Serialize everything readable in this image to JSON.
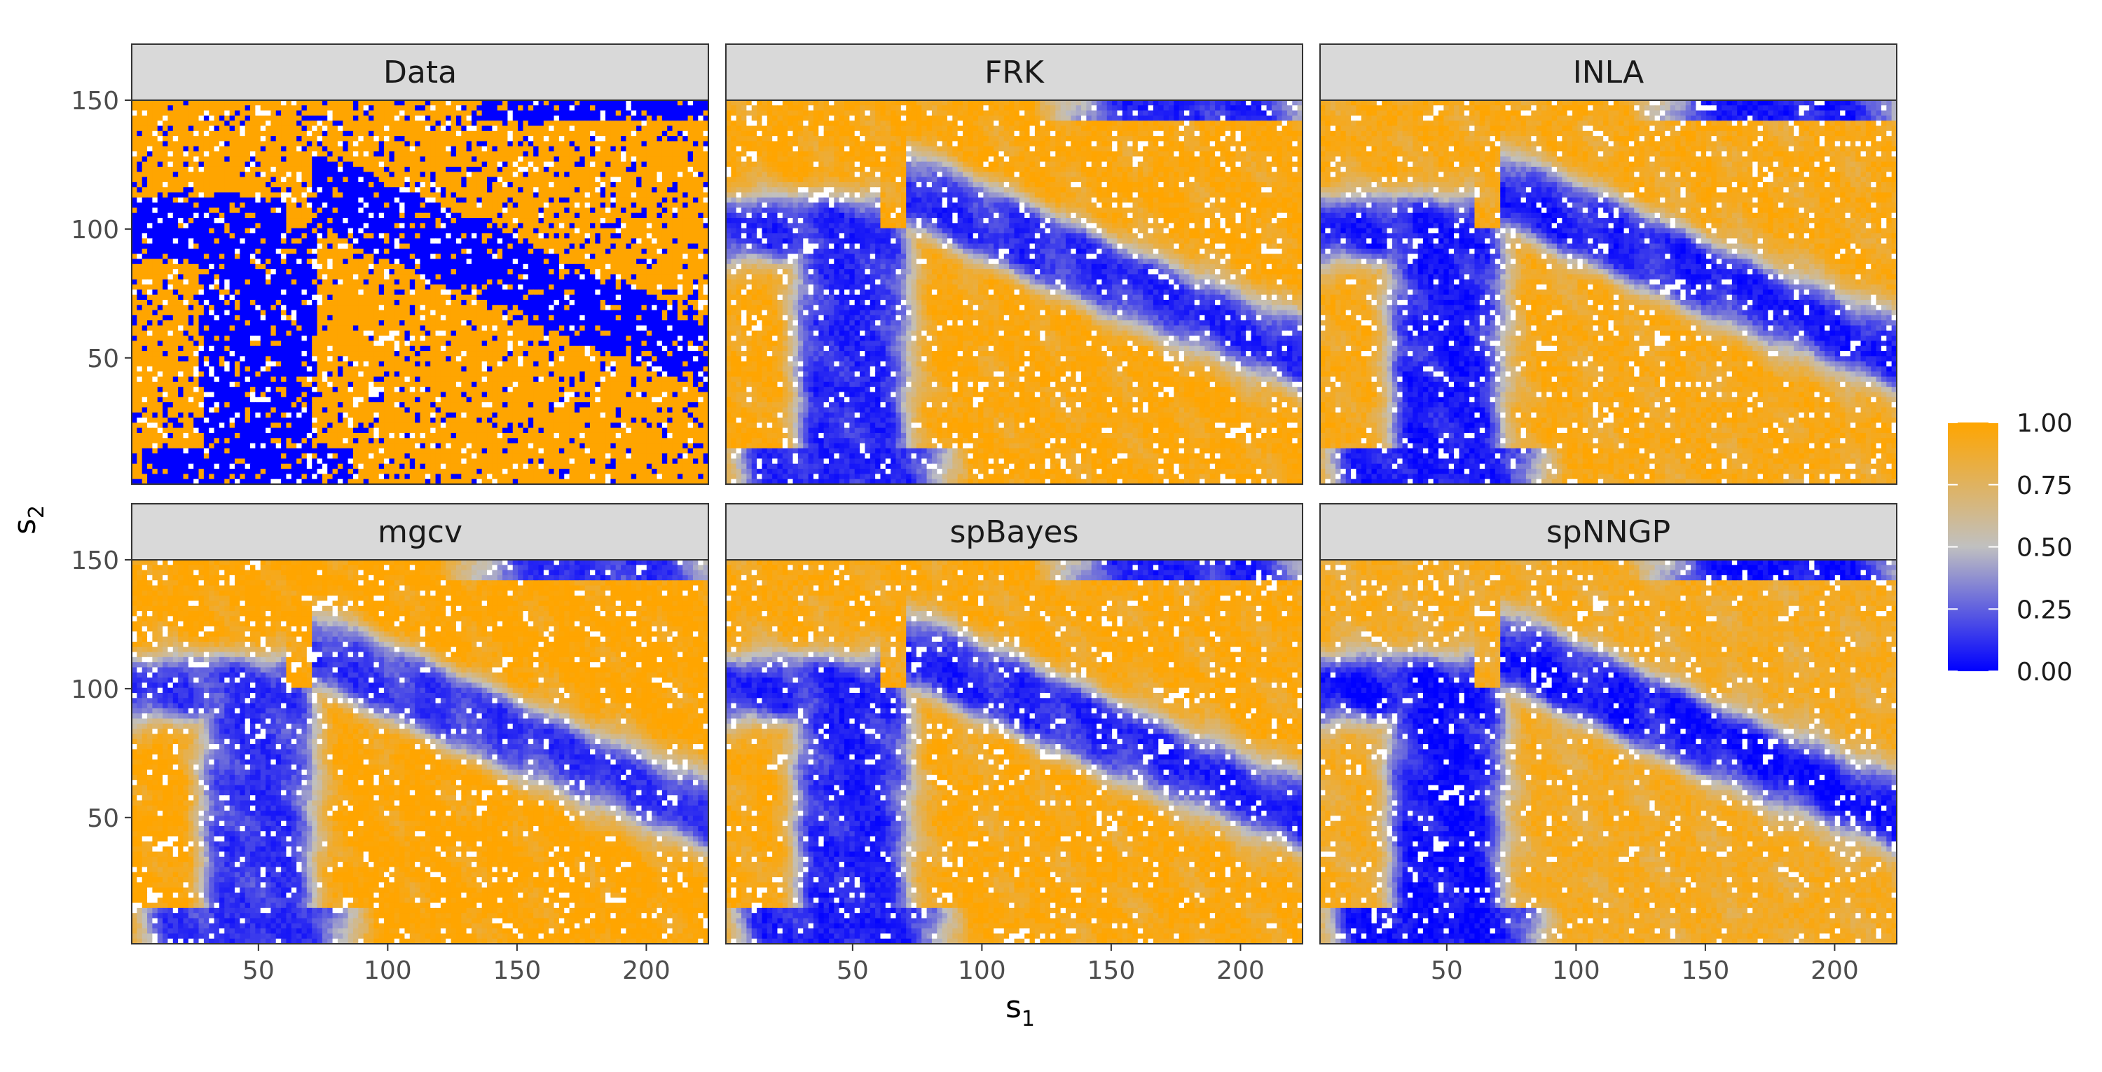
{
  "chart_data": {
    "type": "heatmap",
    "layout": "facet-grid 2x3",
    "panels": [
      "Data",
      "FRK",
      "INLA",
      "mgcv",
      "spBayes",
      "spNNGP"
    ],
    "xlabel": "s",
    "xlabel_sub": "1",
    "ylabel": "s",
    "ylabel_sub": "2",
    "xlim": [
      1,
      224
    ],
    "ylim": [
      1,
      150
    ],
    "xticks": [
      50,
      100,
      150,
      200
    ],
    "yticks": [
      50,
      100,
      150
    ],
    "xtick_labels": [
      "50",
      "100",
      "150",
      "200"
    ],
    "ytick_labels": [
      "50",
      "100",
      "150"
    ],
    "grid": false,
    "missing_color": "#ffffff",
    "colorbar": {
      "placement": "right",
      "limits": [
        0,
        1
      ],
      "ticks": [
        1.0,
        0.75,
        0.5,
        0.25,
        0.0
      ],
      "tick_labels": [
        "1.00",
        "0.75",
        "0.50",
        "0.25",
        "0.00"
      ],
      "colors": {
        "low": "#0000ff",
        "mid": "#c0c0c0",
        "high": "#ffa500"
      }
    }
  }
}
